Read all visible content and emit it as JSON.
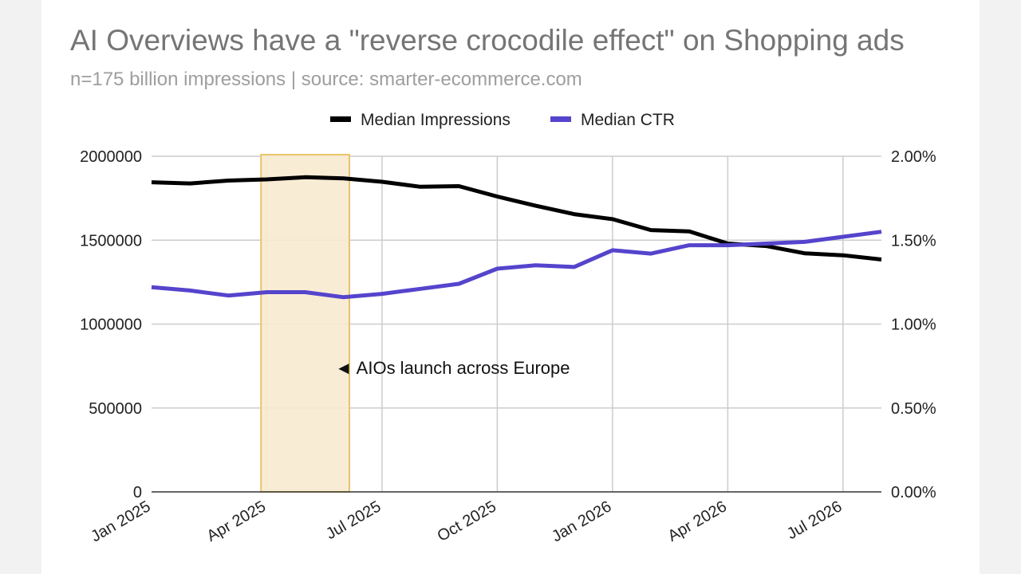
{
  "chart_data": {
    "type": "line",
    "title": "AI Overviews have a \"reverse crocodile effect\" on Shopping ads",
    "subtitle": "n=175 billion impressions | source: smarter-ecommerce.com",
    "x_tick_labels": [
      "Jan 2025",
      "Apr 2025",
      "Jul 2025",
      "Oct 2025",
      "Jan 2026",
      "Apr 2026",
      "Jul 2026"
    ],
    "x": [
      "2025-01",
      "2025-02",
      "2025-03",
      "2025-04",
      "2025-05",
      "2025-06",
      "2025-07",
      "2025-08",
      "2025-09",
      "2025-10",
      "2025-11",
      "2025-12",
      "2026-01",
      "2026-02",
      "2026-03",
      "2026-04",
      "2026-05",
      "2026-06",
      "2026-07",
      "2026-08"
    ],
    "y_left_ticks": [
      "0",
      "500000",
      "1000000",
      "1500000",
      "2000000"
    ],
    "y_right_ticks": [
      "0.00%",
      "0.50%",
      "1.00%",
      "1.50%",
      "2.00%"
    ],
    "y_left_range": [
      0,
      2000000
    ],
    "y_right_range": [
      0,
      0.02
    ],
    "legend_position": "top",
    "series": [
      {
        "name": "Median Impressions",
        "axis": "left",
        "color": "#000000",
        "values": [
          1845000,
          1838000,
          1855000,
          1862000,
          1875000,
          1868000,
          1848000,
          1818000,
          1822000,
          1760000,
          1705000,
          1655000,
          1625000,
          1560000,
          1552000,
          1480000,
          1465000,
          1422000,
          1410000,
          1385000
        ]
      },
      {
        "name": "Median CTR",
        "axis": "right",
        "color": "#5544cc",
        "values": [
          0.0122,
          0.012,
          0.0117,
          0.0119,
          0.0119,
          0.0116,
          0.0118,
          0.0121,
          0.0124,
          0.0133,
          0.0135,
          0.0134,
          0.0144,
          0.0142,
          0.0147,
          0.0147,
          0.0148,
          0.0149,
          0.0152,
          0.0155
        ]
      }
    ],
    "highlight": {
      "start": "2025-04",
      "end": "2025-06",
      "fill": "#f8ead0",
      "stroke": "#e9c46a"
    },
    "annotation": {
      "text": "◄ AIOs launch across Europe"
    },
    "grid": true
  }
}
